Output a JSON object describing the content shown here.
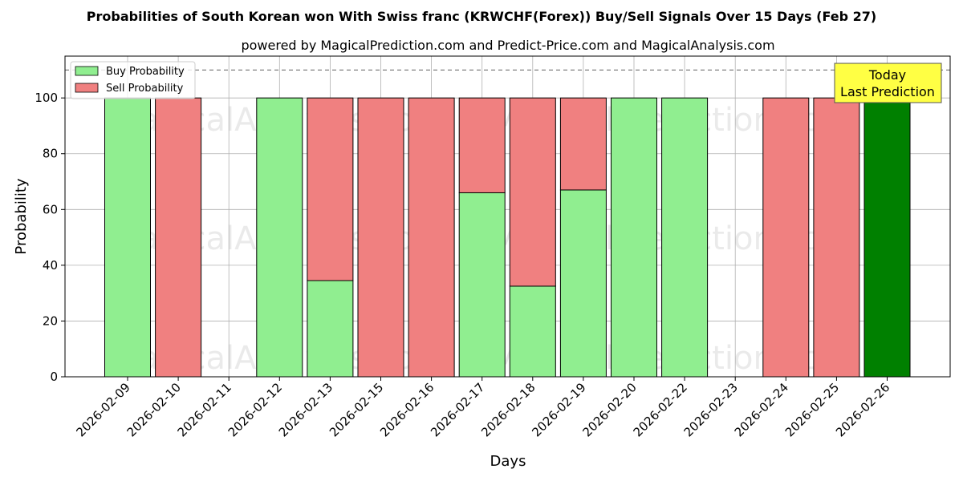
{
  "chart_data": {
    "type": "bar",
    "stacked": true,
    "title": "Probabilities of South Korean won With Swiss franc (KRWCHF(Forex)) Buy/Sell Signals Over 15 Days (Feb 27)",
    "subtitle": "powered by MagicalPrediction.com and Predict-Price.com and MagicalAnalysis.com",
    "xlabel": "Days",
    "ylabel": "Probability",
    "ylim": [
      0,
      115
    ],
    "yticks": [
      0,
      20,
      40,
      60,
      80,
      100
    ],
    "grid": true,
    "legend_placement": "top-left",
    "reference_line": 110,
    "categories": [
      "2026-02-09",
      "2026-02-10",
      "2026-02-11",
      "2026-02-12",
      "2026-02-13",
      "2026-02-15",
      "2026-02-16",
      "2026-02-17",
      "2026-02-18",
      "2026-02-19",
      "2026-02-20",
      "2026-02-22",
      "2026-02-23",
      "2026-02-24",
      "2026-02-25",
      "2026-02-26"
    ],
    "series": [
      {
        "name": "Buy Probability",
        "color": "#90ee90",
        "values": [
          100,
          0,
          0,
          100,
          34.5,
          0,
          0,
          66,
          32.5,
          67,
          100,
          100,
          0,
          0,
          0,
          100
        ]
      },
      {
        "name": "Sell Probability",
        "color": "#f08080",
        "values": [
          0,
          100,
          0,
          0,
          65.5,
          100,
          100,
          34,
          67.5,
          33,
          0,
          0,
          0,
          100,
          100,
          0
        ]
      }
    ],
    "highlight": {
      "index": 15,
      "color": "#008000"
    },
    "annotation": {
      "line1": "Today",
      "line2": "Last Prediction",
      "color": "#ffff44"
    },
    "watermarks": [
      "MagicalAnalysis.com",
      "MagicalPrediction.com"
    ]
  }
}
